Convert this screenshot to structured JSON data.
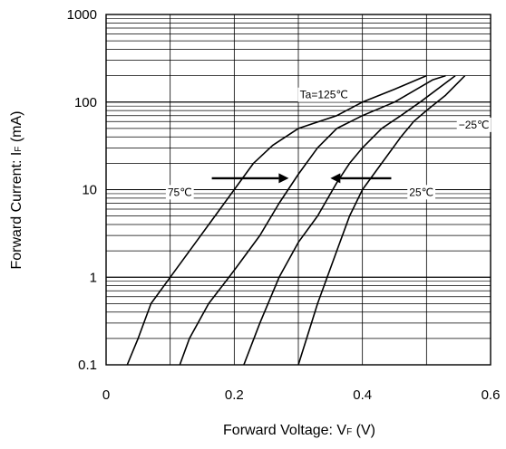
{
  "chart_data": {
    "type": "line",
    "x_label_parts": [
      "Forward Voltage: V",
      "F",
      " (V)"
    ],
    "y_label_parts": [
      "Forward Current: I",
      "F",
      " (mA)"
    ],
    "x_range": [
      0,
      0.6
    ],
    "y_range": [
      0.1,
      1000
    ],
    "y_scale": "log",
    "x_ticks": [
      0,
      0.2,
      0.4,
      0.6
    ],
    "x_tick_labels": [
      "0",
      "0.2",
      "0.4",
      "0.6"
    ],
    "y_ticks": [
      0.1,
      1,
      10,
      100,
      1000
    ],
    "y_tick_labels": [
      "0.1",
      "1",
      "10",
      "100",
      "1000"
    ],
    "grid": true,
    "series": [
      {
        "name": "Ta=125℃",
        "points": [
          [
            0.033,
            0.1
          ],
          [
            0.05,
            0.2
          ],
          [
            0.07,
            0.5
          ],
          [
            0.1,
            1
          ],
          [
            0.14,
            2.5
          ],
          [
            0.17,
            5
          ],
          [
            0.2,
            10
          ],
          [
            0.23,
            20
          ],
          [
            0.26,
            32
          ],
          [
            0.3,
            50
          ],
          [
            0.36,
            70
          ],
          [
            0.4,
            100
          ],
          [
            0.45,
            140
          ],
          [
            0.5,
            200
          ]
        ]
      },
      {
        "name": "75℃",
        "points": [
          [
            0.115,
            0.1
          ],
          [
            0.13,
            0.2
          ],
          [
            0.16,
            0.5
          ],
          [
            0.2,
            1.2
          ],
          [
            0.24,
            3
          ],
          [
            0.27,
            7
          ],
          [
            0.3,
            15
          ],
          [
            0.33,
            30
          ],
          [
            0.36,
            50
          ],
          [
            0.4,
            70
          ],
          [
            0.45,
            100
          ],
          [
            0.51,
            180
          ],
          [
            0.53,
            200
          ]
        ]
      },
      {
        "name": "25℃",
        "points": [
          [
            0.215,
            0.1
          ],
          [
            0.24,
            0.3
          ],
          [
            0.27,
            1
          ],
          [
            0.3,
            2.5
          ],
          [
            0.33,
            5
          ],
          [
            0.36,
            12
          ],
          [
            0.38,
            20
          ],
          [
            0.4,
            30
          ],
          [
            0.43,
            50
          ],
          [
            0.46,
            70
          ],
          [
            0.49,
            100
          ],
          [
            0.545,
            200
          ]
        ]
      },
      {
        "name": "−25℃",
        "points": [
          [
            0.3,
            0.1
          ],
          [
            0.33,
            0.5
          ],
          [
            0.36,
            2
          ],
          [
            0.38,
            5
          ],
          [
            0.4,
            10
          ],
          [
            0.43,
            20
          ],
          [
            0.46,
            40
          ],
          [
            0.48,
            60
          ],
          [
            0.5,
            80
          ],
          [
            0.53,
            120
          ],
          [
            0.56,
            200
          ]
        ]
      }
    ],
    "annotations": [
      {
        "text": "Ta=125℃",
        "x": 0.34,
        "y": 110
      },
      {
        "text": "−25℃",
        "x": 0.574,
        "y": 50
      },
      {
        "text": "75℃",
        "x": 0.115,
        "y": 8.5
      },
      {
        "text": "25℃",
        "x": 0.492,
        "y": 8.5
      }
    ],
    "arrows": [
      {
        "from": [
          0.165,
          13.5
        ],
        "to": [
          0.285,
          13.5
        ]
      },
      {
        "from": [
          0.445,
          13.5
        ],
        "to": [
          0.35,
          13.5
        ]
      }
    ]
  }
}
